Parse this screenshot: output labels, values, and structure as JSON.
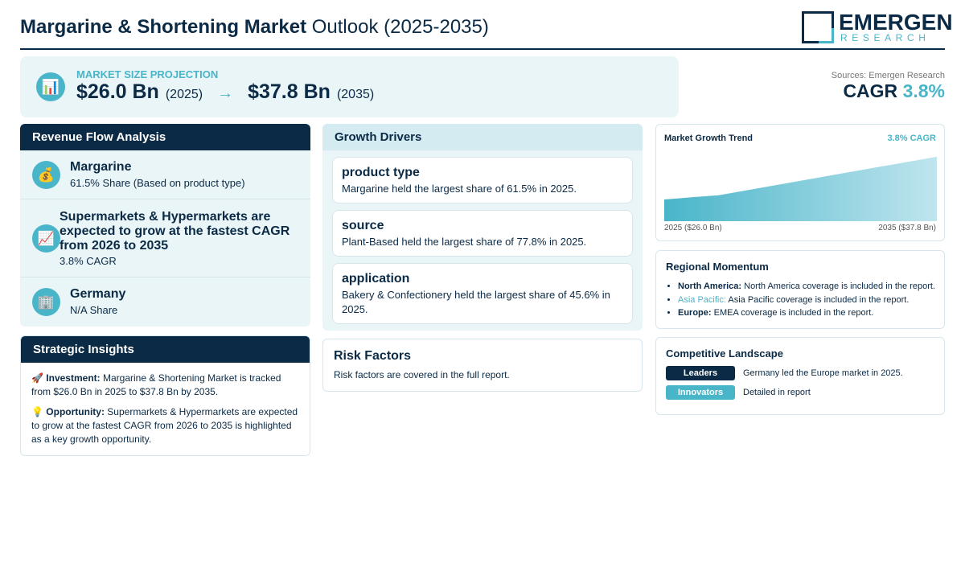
{
  "header": {
    "title_bold": "Margarine & Shortening Market",
    "title_rest": "Outlook (2025-2035)",
    "logo_main": "EMERGEN",
    "logo_sub": "RESEARCH"
  },
  "projection": {
    "icon": "bar-chart-icon",
    "label": "MARKET SIZE PROJECTION",
    "start_value": "$26.0 Bn",
    "start_year": "(2025)",
    "arrow": "→",
    "end_value": "$37.8 Bn",
    "end_year": "(2035)"
  },
  "sources": "Sources: Emergen Research",
  "cagr": {
    "label": "CAGR",
    "value": "3.8%"
  },
  "revenue_flow": {
    "title": "Revenue Flow Analysis",
    "items": [
      {
        "icon": "money-bag-icon",
        "title": "Margarine",
        "subtitle": "61.5% Share (Based on product type)"
      },
      {
        "icon": "chart-increasing-icon",
        "title": "Supermarkets & Hypermarkets are expected to grow at the fastest CAGR from 2026 to 2035",
        "subtitle": "3.8% CAGR"
      },
      {
        "icon": "office-building-icon",
        "title": "Germany",
        "subtitle": "N/A Share"
      }
    ]
  },
  "insights": {
    "title": "Strategic Insights",
    "investment_label": "Investment:",
    "investment_text": "Margarine & Shortening Market is tracked from $26.0 Bn in 2025 to $37.8 Bn by 2035.",
    "opportunity_label": "Opportunity:",
    "opportunity_text": "Supermarkets & Hypermarkets are expected to grow at the fastest CAGR from 2026 to 2035 is highlighted as a key growth opportunity."
  },
  "drivers": {
    "title": "Growth Drivers",
    "cards": [
      {
        "title": "product type",
        "text": "Margarine held the largest share of 61.5% in 2025."
      },
      {
        "title": "source",
        "text": "Plant-Based held the largest share of 77.8% in 2025."
      },
      {
        "title": "application",
        "text": "Bakery & Confectionery held the largest share of 45.6% in 2025."
      }
    ]
  },
  "risk": {
    "title": "Risk Factors",
    "text": "Risk factors are covered in the full report."
  },
  "trend": {
    "title": "Market Growth Trend",
    "cagr_label": "3.8% CAGR",
    "start_label": "2025 ($26.0 Bn)",
    "end_label": "2035 ($37.8 Bn)"
  },
  "chart_data": {
    "type": "area",
    "x": [
      2025,
      2035
    ],
    "values": [
      26.0,
      37.8
    ],
    "title": "Market Growth Trend",
    "xlabel": "",
    "ylabel": ""
  },
  "regional": {
    "title": "Regional Momentum",
    "items": [
      {
        "name": "North America:",
        "text": "North America coverage is included in the report."
      },
      {
        "name": "Asia Pacific:",
        "text": "Asia Pacific coverage is included in the report."
      },
      {
        "name": "Europe:",
        "text": "EMEA coverage is included in the report."
      }
    ]
  },
  "competitive": {
    "title": "Competitive Landscape",
    "leaders_tag": "Leaders",
    "leaders_text": "Germany led the Europe market in 2025.",
    "innovators_tag": "Innovators",
    "innovators_text": "Detailed in report"
  },
  "colors": {
    "navy": "#0b2a45",
    "accent": "#49b5c9",
    "panel_bg": "#eaf5f8"
  }
}
